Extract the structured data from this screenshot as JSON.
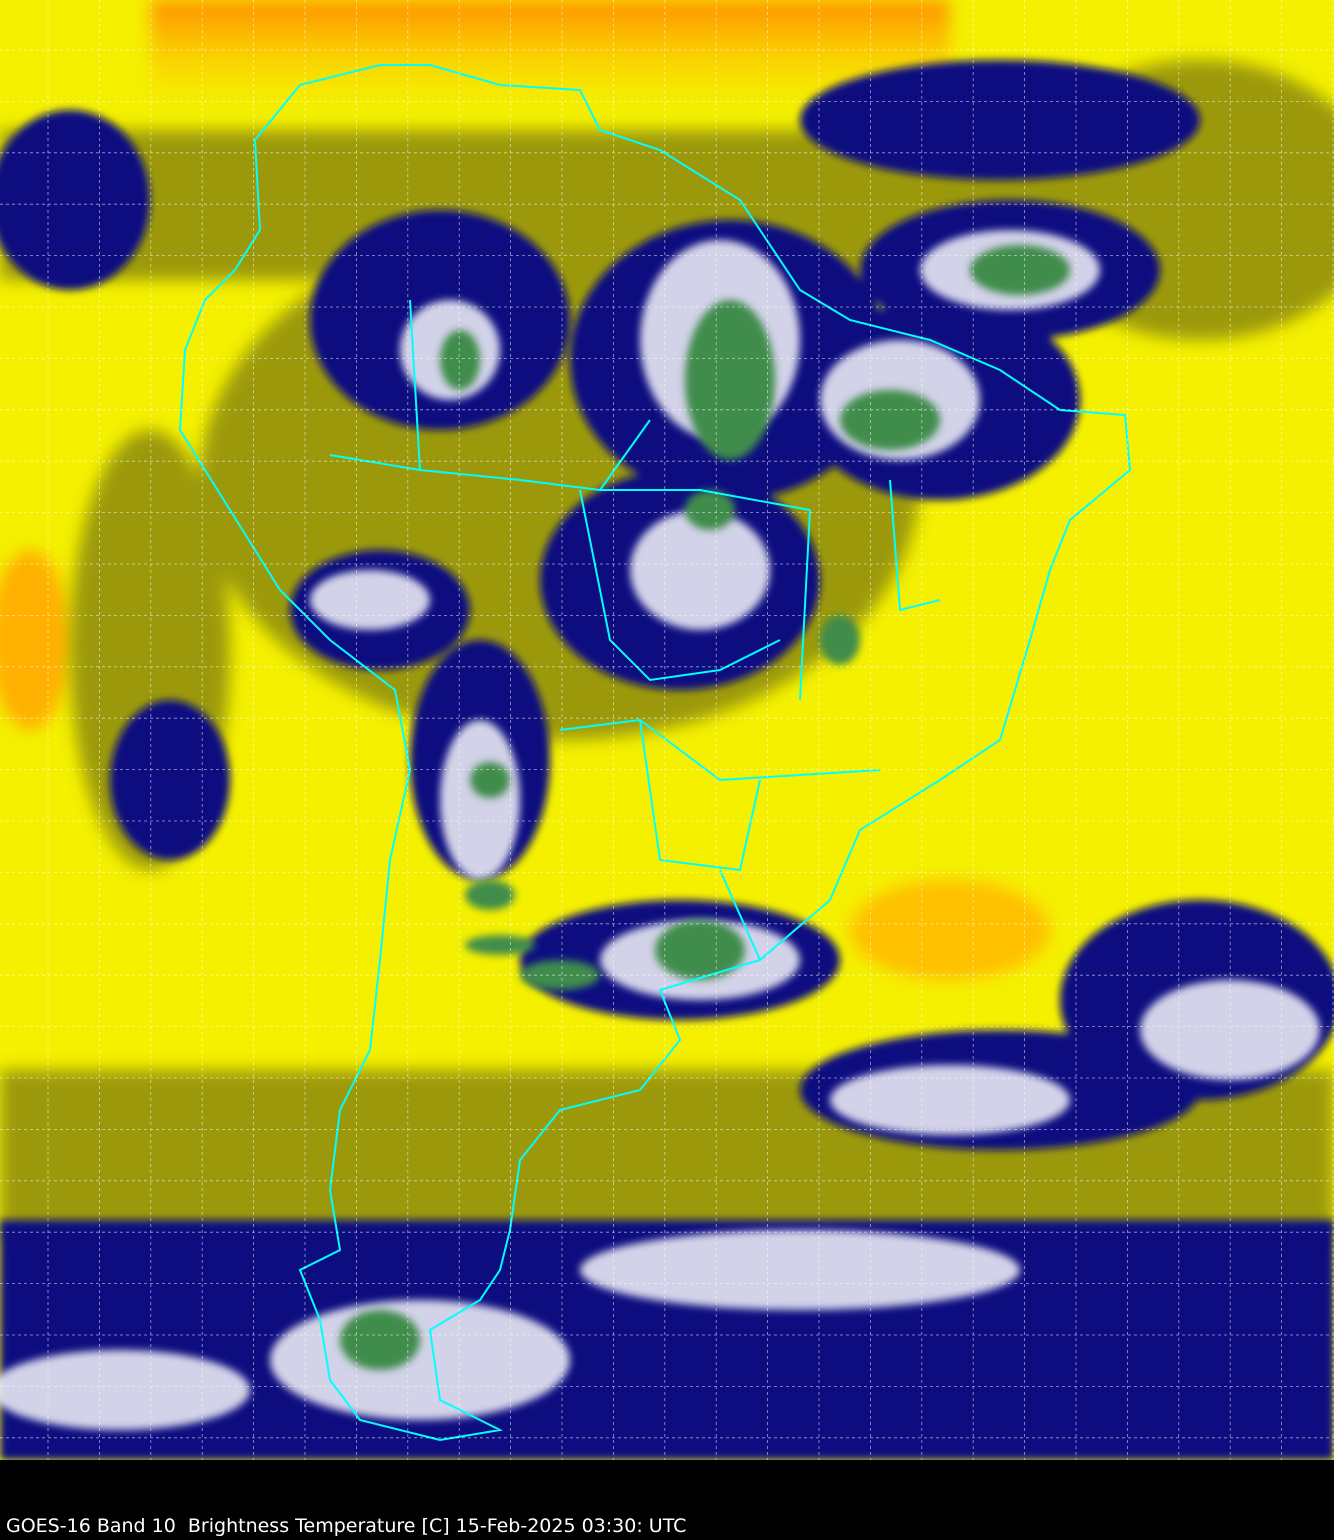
{
  "caption": "GOES-16 Band 10  Brightness Temperature [C] 15-Feb-2025 03:30: UTC",
  "colors": {
    "warm": "#ffff00",
    "warmest": "#ff9a00",
    "moderate": "#8c8c00",
    "cold": "#0a0a80",
    "colder": "#ffffff",
    "coldest": "#3a8a50",
    "borders": "#00ffff",
    "grid": "#ffffff",
    "background": "#000000"
  }
}
